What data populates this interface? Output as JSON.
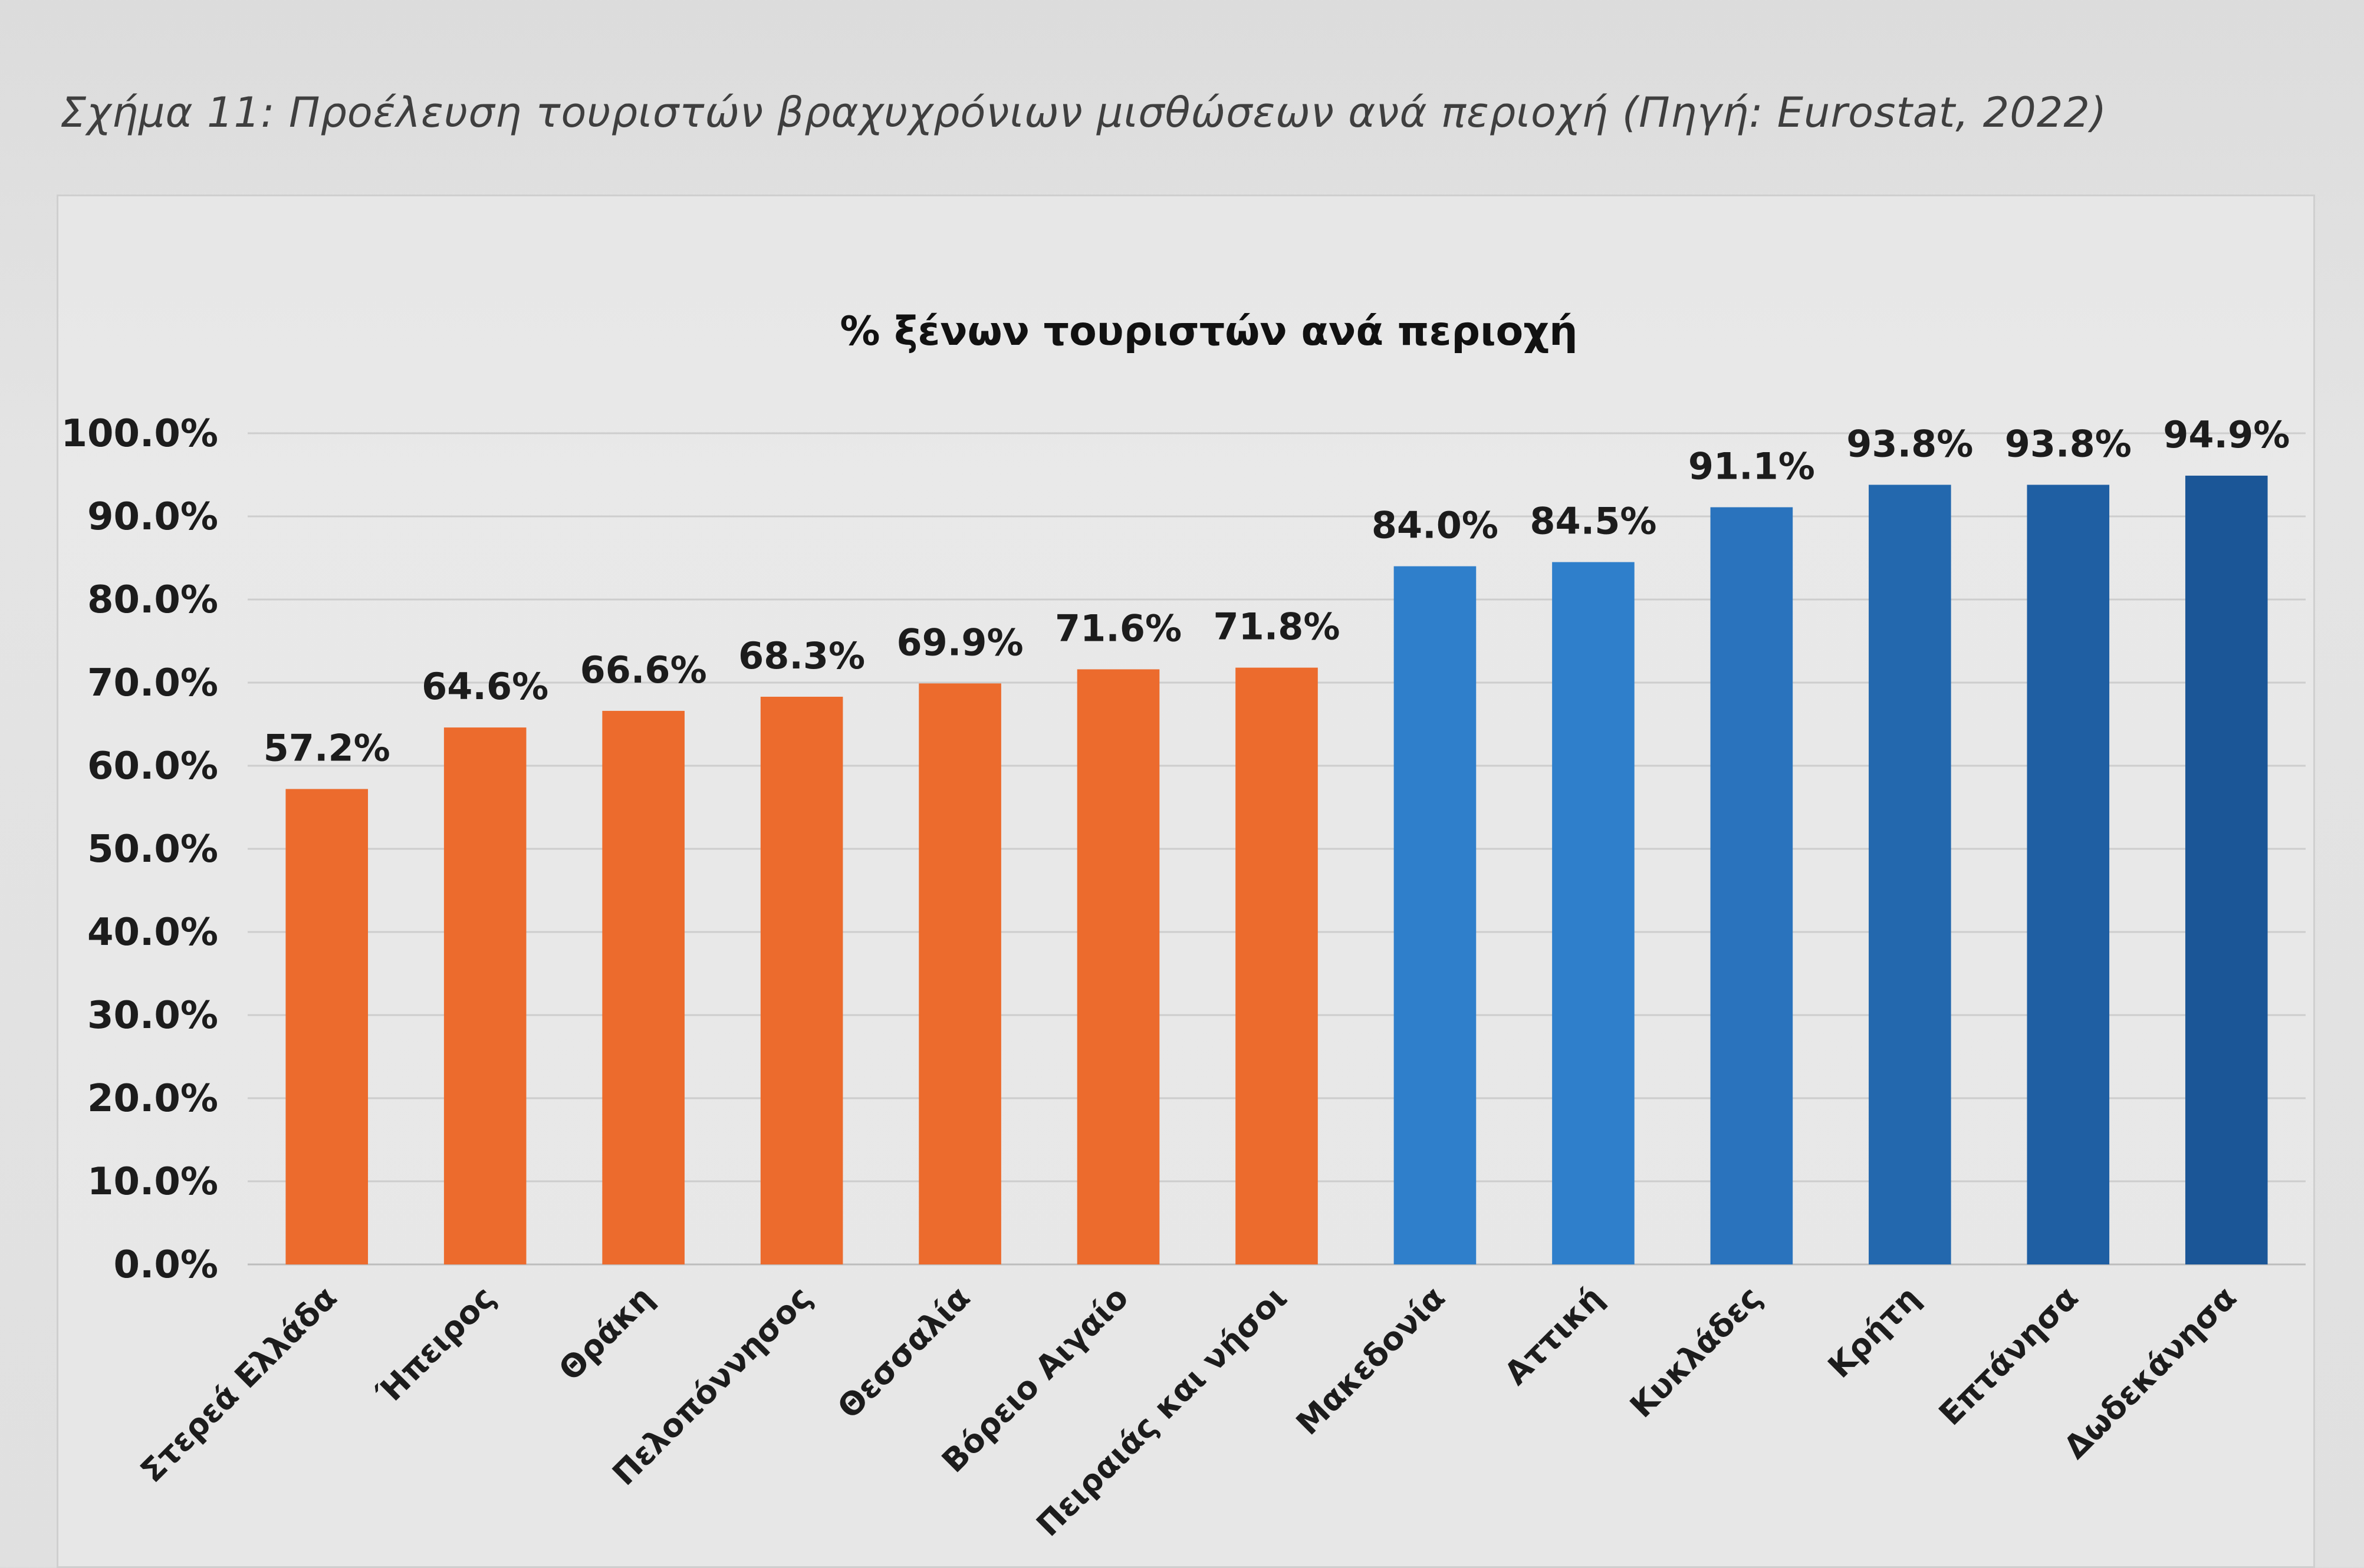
{
  "caption": "Σχήμα 11: Προέλευση τουριστών βραχυχρόνιων μισθώσεων ανά περιοχή (Πηγή: Eurostat, 2022)",
  "chart_data": {
    "type": "bar",
    "title": "% ξένων τουριστών ανά περιοχή",
    "xlabel": "",
    "ylabel": "",
    "ylim": [
      0,
      100
    ],
    "yticks": [
      "0.0%",
      "10.0%",
      "20.0%",
      "30.0%",
      "40.0%",
      "50.0%",
      "60.0%",
      "70.0%",
      "80.0%",
      "90.0%",
      "100.0%"
    ],
    "grid": true,
    "categories": [
      "Στερεά Ελλάδα",
      "Ήπειρος",
      "Θράκη",
      "Πελοπόννησος",
      "Θεσσαλία",
      "Βόρειο Αιγαίο",
      "Πειραιάς και νήσοι",
      "Μακεδονία",
      "Αττική",
      "Κυκλάδες",
      "Κρήτη",
      "Επτάνησα",
      "Δωδεκάνησα"
    ],
    "values": [
      57.2,
      64.6,
      66.6,
      68.3,
      69.9,
      71.6,
      71.8,
      84.0,
      84.5,
      91.1,
      93.8,
      93.8,
      94.9
    ],
    "value_labels": [
      "57.2%",
      "64.6%",
      "66.6%",
      "68.3%",
      "69.9%",
      "71.6%",
      "71.8%",
      "84.0%",
      "84.5%",
      "91.1%",
      "93.8%",
      "93.8%",
      "94.9%"
    ],
    "colors": [
      "#ec6b2d",
      "#ec6b2d",
      "#ec6b2d",
      "#ec6b2d",
      "#ec6b2d",
      "#ec6b2d",
      "#ec6b2d",
      "#2f7fcb",
      "#2f7fcb",
      "#2a73bd",
      "#2368ae",
      "#1f5fa3",
      "#1b5697"
    ]
  }
}
